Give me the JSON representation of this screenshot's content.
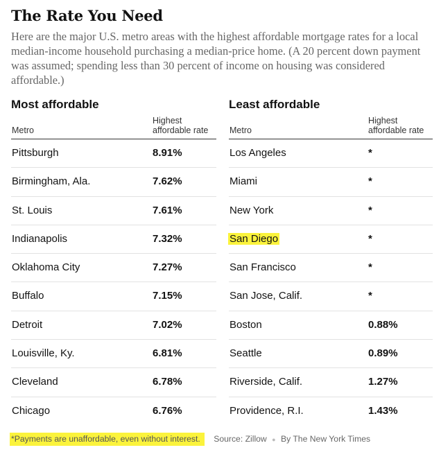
{
  "title": "The Rate You Need",
  "subtitle": "Here are the major U.S. metro areas with the highest affordable mortgage rates for a local median-income household purchasing a median-price home. (A 20 percent down payment was assumed; spending less than 30 percent of income on housing was considered affordable.)",
  "tables": {
    "most": {
      "title": "Most affordable",
      "metro_header": "Metro",
      "rate_header": "Highest affordable rate",
      "rows": [
        {
          "metro": "Pittsburgh",
          "rate": "8.91%"
        },
        {
          "metro": "Birmingham, Ala.",
          "rate": "7.62%"
        },
        {
          "metro": "St. Louis",
          "rate": "7.61%"
        },
        {
          "metro": "Indianapolis",
          "rate": "7.32%"
        },
        {
          "metro": "Oklahoma City",
          "rate": "7.27%"
        },
        {
          "metro": "Buffalo",
          "rate": "7.15%"
        },
        {
          "metro": "Detroit",
          "rate": "7.02%"
        },
        {
          "metro": "Louisville, Ky.",
          "rate": "6.81%"
        },
        {
          "metro": "Cleveland",
          "rate": "6.78%"
        },
        {
          "metro": "Chicago",
          "rate": "6.76%"
        }
      ]
    },
    "least": {
      "title": "Least affordable",
      "metro_header": "Metro",
      "rate_header": "Highest affordable rate",
      "rows": [
        {
          "metro": "Los Angeles",
          "rate": "*"
        },
        {
          "metro": "Miami",
          "rate": "*"
        },
        {
          "metro": "New York",
          "rate": "*"
        },
        {
          "metro": "San Diego",
          "rate": "*",
          "highlight": true
        },
        {
          "metro": "San Francisco",
          "rate": "*"
        },
        {
          "metro": "San Jose, Calif.",
          "rate": "*"
        },
        {
          "metro": "Boston",
          "rate": "0.88%"
        },
        {
          "metro": "Seattle",
          "rate": "0.89%"
        },
        {
          "metro": "Riverside, Calif.",
          "rate": "1.27%"
        },
        {
          "metro": "Providence, R.I.",
          "rate": "1.43%"
        }
      ]
    }
  },
  "footer": {
    "note": "*Payments are unaffordable, even without interest.",
    "source": "Source: Zillow",
    "separator": "●",
    "credit": "By The New York Times"
  },
  "colors": {
    "highlight": "#fbf33c",
    "text": "#121212",
    "muted": "#666666"
  }
}
